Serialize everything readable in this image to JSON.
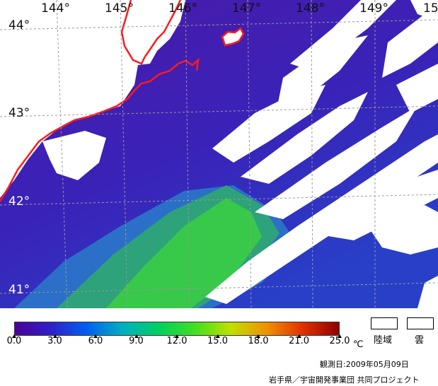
{
  "map": {
    "longitude_labels": [
      "144°",
      "145°",
      "146°",
      "147°",
      "148°",
      "149°",
      "15"
    ],
    "latitude_labels": [
      "44°",
      "43°",
      "42°",
      "41°"
    ],
    "colors": {
      "sea_low": "#4a1aa8",
      "sea_mid": "#2840c8",
      "sea_warm": "#2ea27a",
      "sea_green": "#38c84a",
      "cloud_land": "#ffffff",
      "coastline": "#ff1a1a",
      "graticule": "#9a9a9a"
    }
  },
  "scale": {
    "ticks": [
      "0.0",
      "3.0",
      "6.0",
      "9.0",
      "12.0",
      "15.0",
      "18.0",
      "21.0",
      "25.0"
    ],
    "unit": "℃",
    "gradient": [
      "#4a0098",
      "#3020c8",
      "#0060f0",
      "#00b0c0",
      "#00d060",
      "#40e020",
      "#c0e000",
      "#f09000",
      "#e03000",
      "#900000"
    ]
  },
  "legend": {
    "land_label": "陸域",
    "cloud_label": "雲"
  },
  "footer": {
    "observation_date": "観測日:2009年05月09日",
    "credit": "岩手県／宇宙開発事業団 共同プロジェクト"
  }
}
